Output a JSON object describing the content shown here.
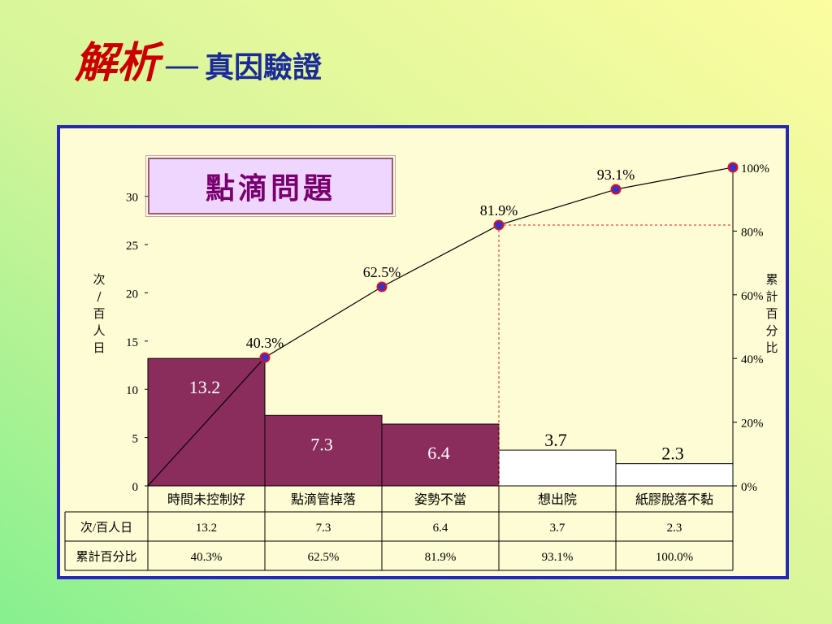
{
  "title": {
    "part1": "解析",
    "dash": "—",
    "part2": "真因驗證"
  },
  "box_label": "點滴問題",
  "left_axis_chars": [
    "次",
    "/",
    "百",
    "人",
    "日"
  ],
  "right_axis_chars": [
    "累",
    "計",
    "百",
    "分",
    "比"
  ],
  "chart_data": {
    "type": "bar",
    "categories": [
      "時間未控制好",
      "點滴管掉落",
      "姿勢不當",
      "想出院",
      "紙膠脫落不黏"
    ],
    "values": [
      13.2,
      7.3,
      6.4,
      3.7,
      2.3
    ],
    "value_labels": [
      "13.2",
      "7.3",
      "6.4",
      "3.7",
      "2.3"
    ],
    "bar_colors": [
      "#8b2d5c",
      "#8b2d5c",
      "#8b2d5c",
      "#ffffff",
      "#ffffff"
    ],
    "cumulative": [
      40.3,
      62.5,
      81.9,
      93.1,
      100.0
    ],
    "cumulative_labels": [
      "40.3%",
      "62.5%",
      "81.9%",
      "93.1%",
      ""
    ],
    "cutoff_percent": 81.9,
    "y_ticks": [
      "0",
      "5",
      "10",
      "15",
      "20",
      "25",
      "30"
    ],
    "ylim": [
      0,
      33
    ],
    "y2_ticks": [
      "0%",
      "20%",
      "40%",
      "60%",
      "80%",
      "100%"
    ],
    "y2lim": [
      0,
      100
    ],
    "table": {
      "rows": [
        {
          "header": "次/百人日",
          "cells": [
            "13.2",
            "7.3",
            "6.4",
            "3.7",
            "2.3"
          ]
        },
        {
          "header": "累計百分比",
          "cells": [
            "40.3%",
            "62.5%",
            "81.9%",
            "93.1%",
            "100.0%"
          ]
        }
      ]
    },
    "colors": {
      "line": "#000000",
      "marker_fill": "#3333cc",
      "marker_edge": "#dd1122",
      "cutoff_line": "#dd2222"
    }
  }
}
